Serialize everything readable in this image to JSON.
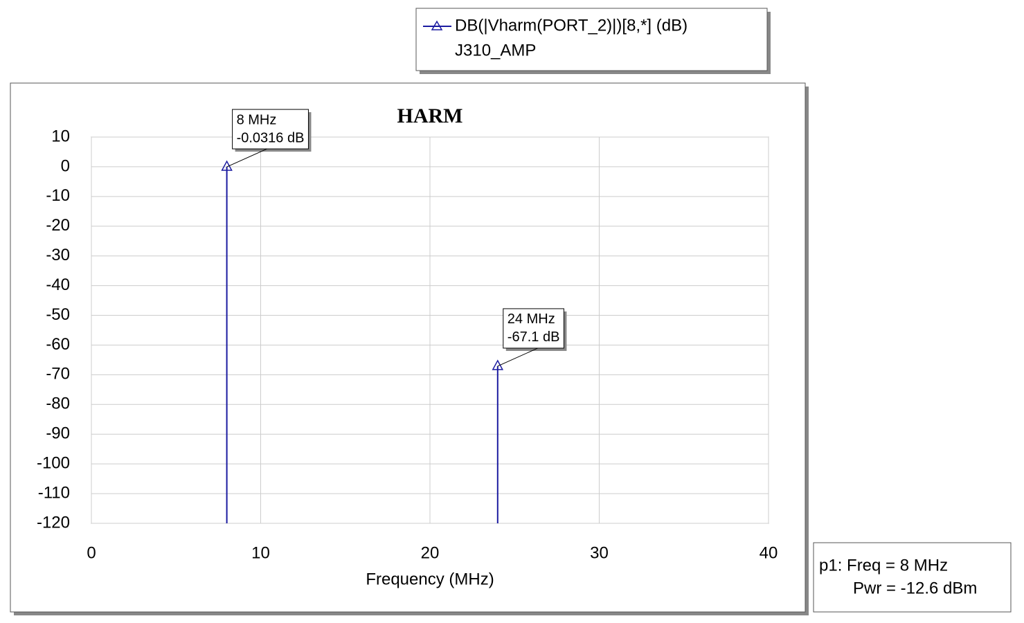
{
  "chart_data": {
    "type": "stem",
    "title": "HARM",
    "x_label": "Frequency (MHz)",
    "x": [
      8,
      24
    ],
    "series": [
      {
        "name": "DB(|Vharm(PORT_2)|)[8,*] (dB)",
        "color": "#1a1aa0",
        "values": [
          -0.0316,
          -67.1
        ],
        "x_labels": [
          "8 MHz",
          "24 MHz"
        ],
        "value_labels": [
          "-0.0316 dB",
          "-67.1 dB"
        ]
      }
    ],
    "legend_subtitle": "J310_AMP",
    "xlim": [
      0,
      40
    ],
    "xticks": [
      0,
      10,
      20,
      30,
      40
    ],
    "ylim": [
      -120,
      10
    ],
    "yticks": [
      10,
      0,
      -10,
      -20,
      -30,
      -40,
      -50,
      -60,
      -70,
      -80,
      -90,
      -100,
      -110,
      -120
    ],
    "grid": true,
    "marker_readout": [
      "p1: Freq = 8 MHz",
      "Pwr = -12.6 dBm"
    ]
  }
}
